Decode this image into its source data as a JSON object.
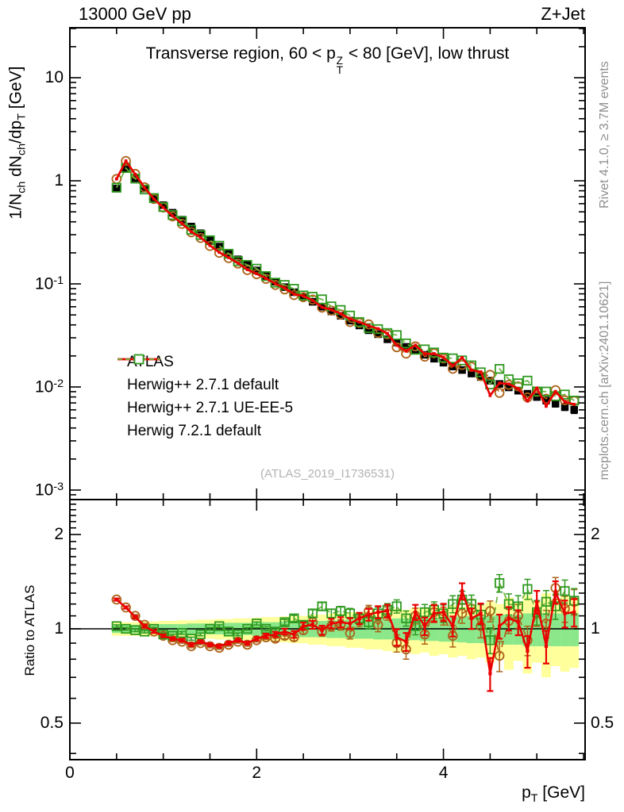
{
  "header": {
    "left": "13000 GeV pp",
    "right": "Z+Jet"
  },
  "panel_title": "Transverse region, 60 < p^{Z}_{T} < 80 [GeV], low thrust",
  "watermark": "(ATLAS_2019_I1736531)",
  "side_notes": {
    "top": "Rivet 4.1.0, ≥ 3.7M events",
    "bottom": "mcplots.cern.ch [arXiv:2401.10621]"
  },
  "colors": {
    "atlas": "#000000",
    "herwigpp_default": "#ad6218",
    "herwigpp_ueee5": "#ea0000",
    "herwig7_default": "#2f9a20",
    "herwig7_line": "#6ab33c",
    "band_inner": "#8ae78a",
    "band_outer": "#ffff9b",
    "frame": "#000000",
    "side_text": "#8f8f8f",
    "watermark": "#b3b3b3"
  },
  "chart_data": {
    "type": "line",
    "title": "Transverse region, 60 < pT(Z) < 80 [GeV], low thrust",
    "xlabel": "p_{T} [GeV]",
    "ylabel_main": "1/N_{ch} dN_{ch}/dp_{T} [GeV]",
    "ylabel_ratio": "Ratio to ATLAS",
    "xlim": [
      0,
      5.52
    ],
    "ylim_main": [
      0.00082,
      30.5
    ],
    "ylim_ratio": [
      0.382,
      2.56
    ],
    "grid": false,
    "legend_position": "middle-left",
    "xticks": {
      "major": [
        0,
        2,
        4
      ],
      "labels": [
        "0",
        "2",
        "4"
      ],
      "minor": [
        0.5,
        1,
        1.5,
        2.5,
        3,
        3.5,
        4.5,
        5,
        5.5
      ]
    },
    "yticks_main": {
      "values": [
        10,
        1,
        0.1,
        0.01,
        0.001
      ],
      "labels": [
        "10",
        "1",
        "10^{-1}",
        "10^{-2}",
        "10^{-3}"
      ]
    },
    "yticks_ratio": {
      "values": [
        2,
        1,
        0.5
      ],
      "labels": [
        "2",
        "1",
        "0.5"
      ],
      "minor": [
        0.4,
        0.6,
        0.7,
        0.8,
        0.9,
        1.1,
        1.2,
        1.3,
        1.4,
        1.5,
        1.6,
        1.7,
        1.8,
        1.9,
        2.1,
        2.2,
        2.3,
        2.4,
        2.5
      ]
    },
    "x": [
      0.5,
      0.6,
      0.7,
      0.8,
      0.9,
      1.0,
      1.1,
      1.2,
      1.3,
      1.4,
      1.5,
      1.6,
      1.7,
      1.8,
      1.9,
      2.0,
      2.1,
      2.2,
      2.3,
      2.4,
      2.5,
      2.6,
      2.7,
      2.8,
      2.9,
      3.0,
      3.1,
      3.2,
      3.3,
      3.4,
      3.5,
      3.6,
      3.7,
      3.8,
      3.9,
      4.0,
      4.1,
      4.2,
      4.3,
      4.4,
      4.5,
      4.6,
      4.7,
      4.8,
      4.9,
      5.0,
      5.1,
      5.2,
      5.3,
      5.4
    ],
    "series": [
      {
        "name": "ATLAS",
        "marker": "filled-square",
        "line": "none",
        "color": "#000000",
        "values": [
          0.84,
          1.33,
          1.06,
          0.84,
          0.68,
          0.58,
          0.49,
          0.42,
          0.36,
          0.31,
          0.265,
          0.23,
          0.2,
          0.173,
          0.153,
          0.135,
          0.119,
          0.105,
          0.093,
          0.083,
          0.075,
          0.067,
          0.06,
          0.054,
          0.049,
          0.044,
          0.0395,
          0.0355,
          0.0325,
          0.029,
          0.027,
          0.0245,
          0.0225,
          0.0205,
          0.0188,
          0.0172,
          0.0158,
          0.0146,
          0.0135,
          0.0125,
          0.0115,
          0.0107,
          0.0099,
          0.0092,
          0.0086,
          0.008,
          0.0074,
          0.0069,
          0.0064,
          0.006
        ]
      },
      {
        "name": "Herwig++ 2.7.1 default",
        "marker": "open-circle",
        "line": "dashed",
        "color": "#ad6218",
        "ratio": [
          1.24,
          1.17,
          1.1,
          1.03,
          0.98,
          0.95,
          0.92,
          0.91,
          0.88,
          0.9,
          0.88,
          0.87,
          0.89,
          0.91,
          0.89,
          0.92,
          0.94,
          0.93,
          0.95,
          0.94,
          0.99,
          1.05,
          0.98,
          1.02,
          1.03,
          0.97,
          1.06,
          1.14,
          1.03,
          1.12,
          0.9,
          0.86,
          1.1,
          0.96,
          1.13,
          1.1,
          0.95,
          1.12,
          1.16,
          1.02,
          1.14,
          0.82,
          1.06,
          1.1,
          0.92,
          1.12,
          1.04,
          1.35,
          1.16,
          1.22
        ]
      },
      {
        "name": "Herwig++ 2.7.1 UE-EE-5",
        "marker": "small-filled-square",
        "line": "solid",
        "color": "#ea0000",
        "ratio": [
          1.24,
          1.17,
          1.09,
          1.02,
          0.98,
          0.95,
          0.93,
          0.92,
          0.89,
          0.91,
          0.89,
          0.88,
          0.9,
          0.92,
          0.9,
          0.93,
          0.95,
          0.96,
          0.98,
          0.96,
          1.02,
          1.03,
          0.99,
          1.04,
          1.05,
          1.04,
          1.08,
          1.11,
          1.13,
          1.14,
          0.94,
          0.91,
          1.13,
          1.02,
          1.12,
          1.13,
          1.02,
          1.32,
          1.08,
          1.12,
          0.72,
          1.02,
          1.08,
          1.05,
          0.85,
          1.22,
          0.88,
          1.31,
          1.12,
          1.13
        ]
      },
      {
        "name": "Herwig 7.2.1 default",
        "marker": "open-square",
        "line": "dashed",
        "color": "#2f9a20",
        "ratio": [
          1.02,
          1.0,
          0.99,
          0.98,
          1.0,
          0.96,
          0.95,
          0.97,
          0.93,
          0.96,
          1.0,
          1.02,
          0.98,
          0.96,
          1.0,
          1.04,
          1.0,
          0.98,
          1.05,
          1.08,
          1.03,
          1.12,
          1.18,
          1.12,
          1.14,
          1.12,
          1.08,
          1.05,
          1.12,
          1.15,
          1.18,
          1.08,
          1.02,
          1.13,
          1.15,
          1.12,
          1.2,
          1.24,
          1.2,
          1.11,
          0.92,
          1.4,
          1.2,
          1.18,
          1.34,
          1.13,
          1.22,
          1.18,
          1.32,
          1.23
        ]
      }
    ],
    "ratio_err": [
      0.01,
      0.01,
      0.01,
      0.01,
      0.01,
      0.01,
      0.01,
      0.01,
      0.01,
      0.01,
      0.01,
      0.01,
      0.01,
      0.01,
      0.01,
      0.012,
      0.015,
      0.018,
      0.021,
      0.024,
      0.027,
      0.03,
      0.033,
      0.036,
      0.039,
      0.042,
      0.045,
      0.048,
      0.051,
      0.054,
      0.057,
      0.06,
      0.063,
      0.066,
      0.069,
      0.072,
      0.075,
      0.078,
      0.081,
      0.084,
      0.087,
      0.09,
      0.093,
      0.096,
      0.099,
      0.102,
      0.105,
      0.108,
      0.111,
      0.114
    ],
    "bands": {
      "bin_halfwidth": 0.05,
      "inner": [
        0.03,
        0.03,
        0.03,
        0.03,
        0.03,
        0.035,
        0.035,
        0.035,
        0.04,
        0.04,
        0.04,
        0.04,
        0.045,
        0.045,
        0.045,
        0.05,
        0.05,
        0.05,
        0.055,
        0.055,
        0.06,
        0.06,
        0.06,
        0.065,
        0.065,
        0.07,
        0.07,
        0.07,
        0.075,
        0.075,
        0.08,
        0.08,
        0.08,
        0.085,
        0.085,
        0.09,
        0.09,
        0.095,
        0.1,
        0.1,
        0.1,
        0.11,
        0.11,
        0.11,
        0.12,
        0.12,
        0.12,
        0.12,
        0.12,
        0.12
      ],
      "outer": [
        0.05,
        0.05,
        0.05,
        0.055,
        0.055,
        0.06,
        0.06,
        0.065,
        0.065,
        0.07,
        0.07,
        0.075,
        0.075,
        0.08,
        0.08,
        0.085,
        0.09,
        0.09,
        0.095,
        0.1,
        0.1,
        0.11,
        0.11,
        0.12,
        0.12,
        0.13,
        0.13,
        0.14,
        0.14,
        0.15,
        0.16,
        0.15,
        0.17,
        0.16,
        0.18,
        0.17,
        0.19,
        0.18,
        0.2,
        0.19,
        0.22,
        0.2,
        0.26,
        0.21,
        0.28,
        0.22,
        0.3,
        0.24,
        0.27,
        0.25
      ]
    }
  }
}
